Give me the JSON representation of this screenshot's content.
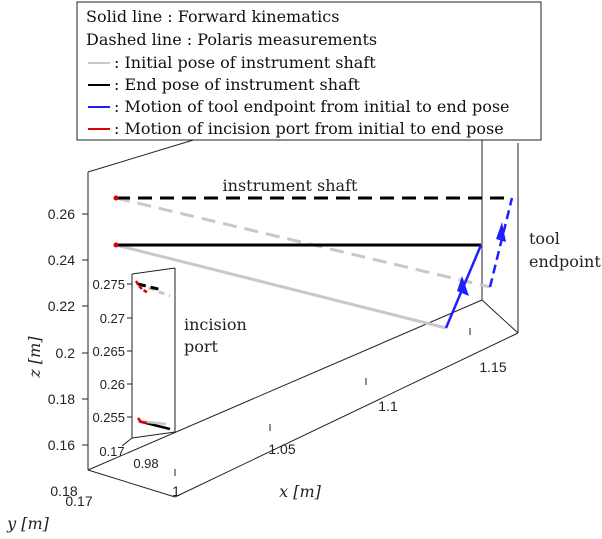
{
  "chart_data": {
    "type": "line3d",
    "legend": {
      "placement": "top",
      "entries": [
        {
          "swatch": "none",
          "text": "Solid line : Forward kinematics"
        },
        {
          "swatch": "none",
          "text": "Dashed line : Polaris measurements"
        },
        {
          "swatch": "#c8c8c8",
          "text": ": Initial pose of instrument shaft"
        },
        {
          "swatch": "#000000",
          "text": ": End pose of instrument shaft"
        },
        {
          "swatch": "#1f1fff",
          "text": ": Motion of tool endpoint from initial to end pose"
        },
        {
          "swatch": "#e00000",
          "text": ": Motion of incision port from initial to end pose"
        }
      ]
    },
    "axes": {
      "x": {
        "label": "x [m]",
        "ticks": [
          "1",
          "1.05",
          "1.1",
          "1.15"
        ]
      },
      "y": {
        "label": "y [m]",
        "ticks": [
          "0.17",
          "0.18"
        ]
      },
      "z": {
        "label": "z [m]",
        "ticks": [
          "0.16",
          "0.18",
          "0.2",
          "0.22",
          "0.24",
          "0.26"
        ]
      }
    },
    "annotations": [
      "instrument shaft",
      "tool\nendpoint",
      "incision\nport"
    ],
    "inset": {
      "y_ticks": [
        "0.17",
        "0.98"
      ],
      "z_ticks": [
        "0.255",
        "0.26",
        "0.265",
        "0.27",
        "0.275"
      ]
    },
    "colors": {
      "initial_pose": "#c8c8c8",
      "end_pose": "#000000",
      "tool_endpoint": "#1f1fff",
      "incision_port": "#e00000"
    }
  }
}
